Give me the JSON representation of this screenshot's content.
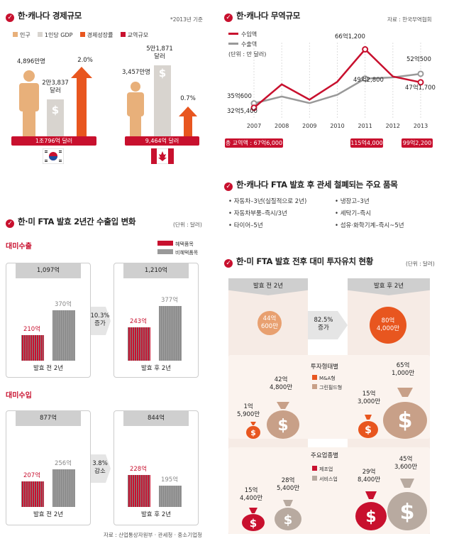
{
  "s1": {
    "title": "한·캐나다 경제규모",
    "note": "*2013년 기준",
    "legend": [
      "인구",
      "1인당 GDP",
      "경제성장률",
      "교역규모"
    ],
    "legend_colors": [
      "#e8b07a",
      "#d8d4cf",
      "#e8561f",
      "#c8102e"
    ],
    "korea": {
      "pop": "4,896만명",
      "gdp": "2만3,837\n달러",
      "growth": "2.0%",
      "trade": "1조796억 달러"
    },
    "canada": {
      "pop": "3,457만명",
      "gdp": "5만1,871\n달러",
      "growth": "0.7%",
      "trade": "9,464억 달러"
    }
  },
  "s2": {
    "title": "한·캐나다 무역규모",
    "note": "자료 : 한국무역협회",
    "legend": [
      "수입액",
      "수출액"
    ],
    "unit": "(단위 : 만 달러)",
    "colors": [
      "#c8102e",
      "#999999"
    ],
    "total_label": "총 교역액 : 67억6,000",
    "labels": {
      "imp2007": "32억5,400",
      "exp2007": "35억600",
      "imp2011": "66억1,200",
      "exp2011": "49억2,800",
      "imp2013": "47억1,700",
      "exp2013": "52억500"
    },
    "badges": {
      "b2011": "115억4,000",
      "b2013": "99억2,200"
    }
  },
  "chart_data": {
    "type": "line",
    "x": [
      "2007",
      "2008",
      "2009",
      "2010",
      "2011",
      "2012",
      "2013"
    ],
    "series": [
      {
        "name": "수입액",
        "values": [
          325400,
          460000,
          372000,
          475000,
          661200,
          505000,
          471700
        ]
      },
      {
        "name": "수출액",
        "values": [
          350600,
          390000,
          352000,
          400000,
          492800,
          500000,
          520500
        ]
      }
    ],
    "ylim": [
      300000,
      700000
    ]
  },
  "s3": {
    "title": "한·캐나다 FTA 발효 후 관세 철폐되는 주요 품목",
    "items": [
      "자동차–3년(실질적으로 2년)",
      "냉장고–3년",
      "자동차부품–즉시/3년",
      "세탁기–즉시",
      "타이어–5년",
      "섬유·화학기계–즉시~5년"
    ]
  },
  "s4": {
    "title": "한·미 FTA 발효 2년간 수출입 변화",
    "unit": "(단위 : 달러)",
    "legend": [
      "혜택품목",
      "비혜택품목"
    ],
    "export": {
      "heading": "대미수출",
      "before_total": "1,097억",
      "before_b": "210억",
      "before_n": "370억",
      "before_label": "발효 전 2년",
      "change": "10.3%\n증가",
      "after_total": "1,210억",
      "after_b": "243억",
      "after_n": "377억",
      "after_label": "발효 후 2년"
    },
    "import": {
      "heading": "대미수입",
      "before_total": "877억",
      "before_b": "207억",
      "before_n": "256억",
      "before_label": "발효 전 2년",
      "change": "3.8%\n감소",
      "after_total": "844억",
      "after_b": "228억",
      "after_n": "195억",
      "after_label": "발효 후 2년"
    },
    "source": "자료 : 산업통상자원부 · 관세청 · 중소기업청"
  },
  "s5": {
    "title": "한·미 FTA 발효 전후 대미 투자유치 현황",
    "unit": "(단위 : 달러)",
    "before_label": "발효 전 2년",
    "after_label": "발효 후 2년",
    "before_total": "44억\n600만",
    "after_total": "80억\n4,000만",
    "change": "82.5%\n증가",
    "type_heading": "투자형태별",
    "type_legend": [
      "M&A형",
      "그린필드형"
    ],
    "industry_heading": "주요업종별",
    "industry_legend": [
      "제조업",
      "서비스업"
    ],
    "before_ma": "1억\n5,900만",
    "before_green": "42억\n4,800만",
    "after_ma": "15억\n3,000만",
    "after_green": "65억\n1,000만",
    "before_mfg": "15억\n4,400만",
    "before_svc": "28억\n5,400만",
    "after_mfg": "29억\n8,400만",
    "after_svc": "45억\n3,600만"
  }
}
